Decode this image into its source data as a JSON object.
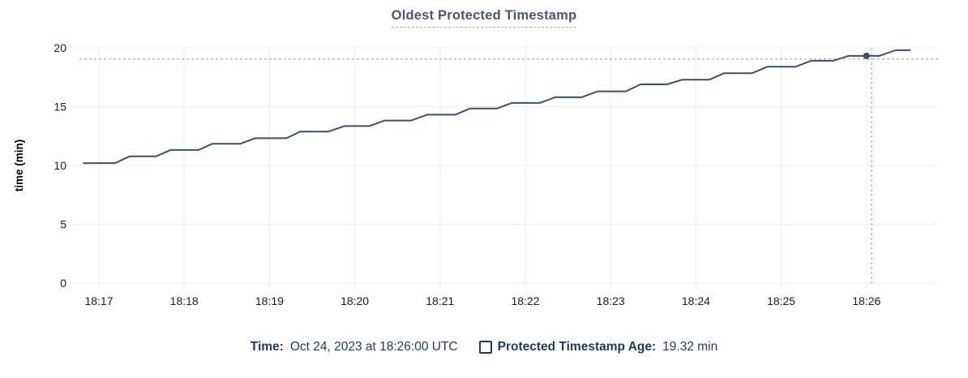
{
  "chart_data": {
    "type": "line",
    "title": "Oldest Protected Timestamp",
    "xlabel": "",
    "ylabel": "time (min)",
    "ylim": [
      0,
      20
    ],
    "yticks": [
      0,
      5,
      10,
      15,
      20
    ],
    "x_tick_labels": [
      "18:17",
      "18:18",
      "18:19",
      "18:20",
      "18:21",
      "18:22",
      "18:23",
      "18:24",
      "18:25",
      "18:26"
    ],
    "x_unit": "minutes, t = minutes after 18:17",
    "grid": true,
    "legend_position": "bottom",
    "series": [
      {
        "name": "Protected Timestamp Age",
        "unit": "min",
        "color": "#3e4f68",
        "points": [
          [
            -0.18,
            10.2
          ],
          [
            0.19,
            10.2
          ],
          [
            0.36,
            10.78
          ],
          [
            0.67,
            10.78
          ],
          [
            0.84,
            11.32
          ],
          [
            1.17,
            11.32
          ],
          [
            1.33,
            11.85
          ],
          [
            1.66,
            11.85
          ],
          [
            1.83,
            12.32
          ],
          [
            2.2,
            12.32
          ],
          [
            2.36,
            12.88
          ],
          [
            2.69,
            12.88
          ],
          [
            2.88,
            13.35
          ],
          [
            3.17,
            13.35
          ],
          [
            3.35,
            13.82
          ],
          [
            3.66,
            13.82
          ],
          [
            3.85,
            14.32
          ],
          [
            4.18,
            14.32
          ],
          [
            4.35,
            14.85
          ],
          [
            4.67,
            14.85
          ],
          [
            4.84,
            15.32
          ],
          [
            5.17,
            15.32
          ],
          [
            5.35,
            15.8
          ],
          [
            5.66,
            15.8
          ],
          [
            5.85,
            16.3
          ],
          [
            6.18,
            16.3
          ],
          [
            6.35,
            16.9
          ],
          [
            6.66,
            16.9
          ],
          [
            6.84,
            17.3
          ],
          [
            7.16,
            17.3
          ],
          [
            7.33,
            17.85
          ],
          [
            7.66,
            17.85
          ],
          [
            7.84,
            18.4
          ],
          [
            8.17,
            18.4
          ],
          [
            8.35,
            18.9
          ],
          [
            8.61,
            18.9
          ],
          [
            8.79,
            19.32
          ],
          [
            9.15,
            19.32
          ],
          [
            9.34,
            19.8
          ],
          [
            9.51,
            19.8
          ]
        ]
      }
    ],
    "hover_point": {
      "t": 9.0,
      "time": "18:26:00",
      "value_min": 19.32
    },
    "crosshair": {
      "t": 9.06,
      "value_min": 19.05
    }
  },
  "legend": {
    "time_label": "Time:",
    "time_value": "Oct 24, 2023 at 18:26:00 UTC",
    "series_label": "Protected Timestamp Age:",
    "series_value": "19.32 min"
  },
  "colors": {
    "series": "#3e4f68",
    "crosshair": "#9db3c5",
    "grid": "#ececec",
    "tick_text": "#1c1c1c",
    "axis_title_text": "#000000",
    "title_text": "#475872",
    "title_underline": "#a4b1c3",
    "legend_text": "#1e3a5f",
    "background": "#ffffff"
  }
}
